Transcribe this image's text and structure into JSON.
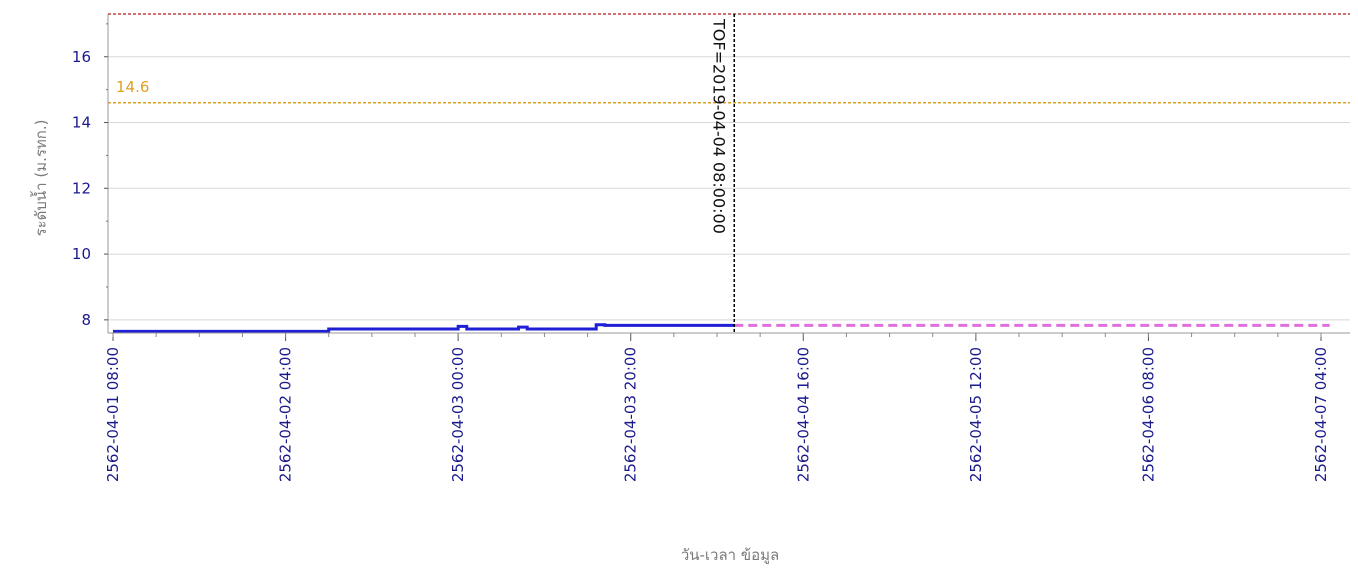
{
  "chart_data": {
    "type": "line",
    "xlabel": "วัน-เวลา ข้อมูล",
    "ylabel": "ระดับน้ำ (ม.รทก.)",
    "ylim": [
      7.6,
      17.3
    ],
    "yticks": [
      8,
      10,
      12,
      14,
      16
    ],
    "xlim": [
      "2562-04-01 08:00",
      "2562-04-07 05:00"
    ],
    "xticks": [
      "2562-04-01 08:00",
      "2562-04-02 04:00",
      "2562-04-03 00:00",
      "2562-04-03 20:00",
      "2562-04-04 16:00",
      "2562-04-05 12:00",
      "2562-04-06 08:00",
      "2562-04-07 04:00"
    ],
    "grid": true,
    "colors": {
      "observed": "#1f1fd6",
      "forecast": "#e070e0",
      "warning": "#e0a020",
      "critical": "#c04040",
      "tof": "#000000",
      "grid": "#d8d8d8",
      "axis_text": "#1a1a8c"
    },
    "series": [
      {
        "style": "solid",
        "x": [
          "2562-04-01 08:00",
          "2562-04-02 08:00",
          "2562-04-02 09:00",
          "2562-04-02 23:00",
          "2562-04-03 00:00",
          "2562-04-03 01:00",
          "2562-04-03 07:00",
          "2562-04-03 08:00",
          "2562-04-03 15:00",
          "2562-04-03 16:00",
          "2562-04-03 17:00",
          "2562-04-04 08:00"
        ],
        "y": [
          7.65,
          7.65,
          7.72,
          7.72,
          7.8,
          7.72,
          7.78,
          7.72,
          7.72,
          7.85,
          7.83,
          7.83
        ]
      },
      {
        "style": "dashed",
        "x": [
          "2562-04-04 08:00",
          "2562-04-07 05:00"
        ],
        "y": [
          7.83,
          7.83
        ]
      }
    ],
    "reference_lines": [
      {
        "value": 17.3,
        "label": "",
        "kind": "critical"
      },
      {
        "value": 14.6,
        "label": "14.6",
        "kind": "warning"
      }
    ],
    "vertical_marker": {
      "x": "2562-04-04 08:00",
      "label": "TOF=2019-04-04 08:00:00"
    }
  }
}
